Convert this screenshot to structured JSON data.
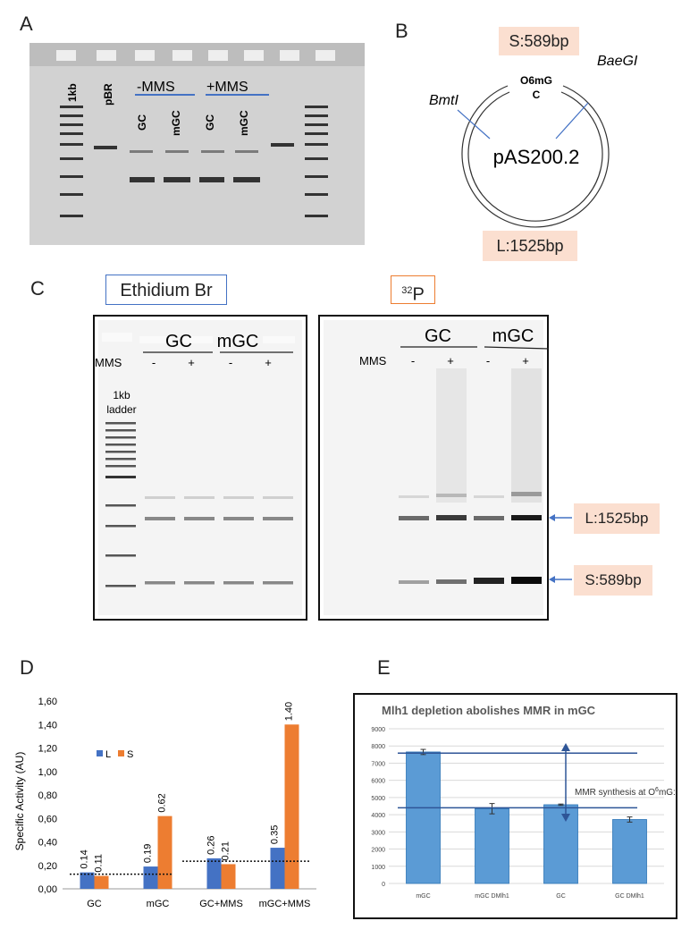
{
  "panel_a": {
    "label": "A",
    "lanes": {
      "ladder": "1kb",
      "pbr": "pBR",
      "minus_mms": "-MMS",
      "plus_mms": "+MMS",
      "gc1": "GC",
      "mgc1": "mGC",
      "gc2": "GC",
      "mgc2": "mGC"
    }
  },
  "panel_b": {
    "label": "B",
    "s_label": "S:589bp",
    "l_label": "L:1525bp",
    "bmt": "BmtI",
    "bae": "BaeGI",
    "site_top": "O6mG",
    "site_bottom": "C",
    "plasmid": "pAS200.2"
  },
  "panel_c": {
    "label": "C",
    "etbr_title": "Ethidium Br",
    "p32_sup": "32",
    "p32_letter": "P",
    "gc": "GC",
    "mgc": "mGC",
    "mms": "MMS",
    "minus": "-",
    "plus": "+",
    "ladder_line1": "1kb",
    "ladder_line2": "ladder",
    "l_band": "L:1525bp",
    "s_band": "S:589bp"
  },
  "panel_d": {
    "label": "D",
    "chart_data": {
      "type": "bar",
      "categories": [
        "GC",
        "mGC",
        "GC+MMS",
        "mGC+MMS"
      ],
      "series": [
        {
          "name": "L",
          "values": [
            0.14,
            0.19,
            0.26,
            0.35
          ],
          "color": "#4472c4"
        },
        {
          "name": "S",
          "values": [
            0.11,
            0.62,
            0.21,
            1.4
          ],
          "color": "#ed7d31"
        }
      ],
      "data_labels": [
        [
          "0.14",
          "0.11"
        ],
        [
          "0.19",
          "0.62"
        ],
        [
          "0.26",
          "0.21"
        ],
        [
          "0.35",
          "1.40"
        ]
      ],
      "ylabel": "Specific Activity (AU)",
      "ylim": [
        0,
        1.6
      ],
      "yticks": [
        "0,00",
        "0,20",
        "0,40",
        "0,60",
        "0,80",
        "1,00",
        "1,20",
        "1,40",
        "1,60"
      ],
      "reference_lines": [
        0.125,
        0.235
      ],
      "grid": false,
      "legend": "left"
    }
  },
  "panel_e": {
    "label": "E",
    "chart_data": {
      "type": "bar",
      "title": "Mlh1 depletion abolishes MMR in mGC",
      "categories": [
        "mGC",
        "mGC DMlh1",
        "GC",
        "GC DMlh1"
      ],
      "values": [
        7650,
        4350,
        4580,
        3720
      ],
      "errors": [
        150,
        300,
        40,
        150
      ],
      "ylim": [
        0,
        9000
      ],
      "yticks": [
        "0",
        "1000",
        "2000",
        "3000",
        "4000",
        "5000",
        "6000",
        "7000",
        "8000",
        "9000"
      ],
      "reference_lines": [
        7580,
        4400
      ],
      "annotation_prefix": "MMR synthesis at O",
      "annotation_sup": "6",
      "annotation_suffix": "mG:C",
      "grid": true,
      "bar_color": "#5b9bd5"
    }
  }
}
